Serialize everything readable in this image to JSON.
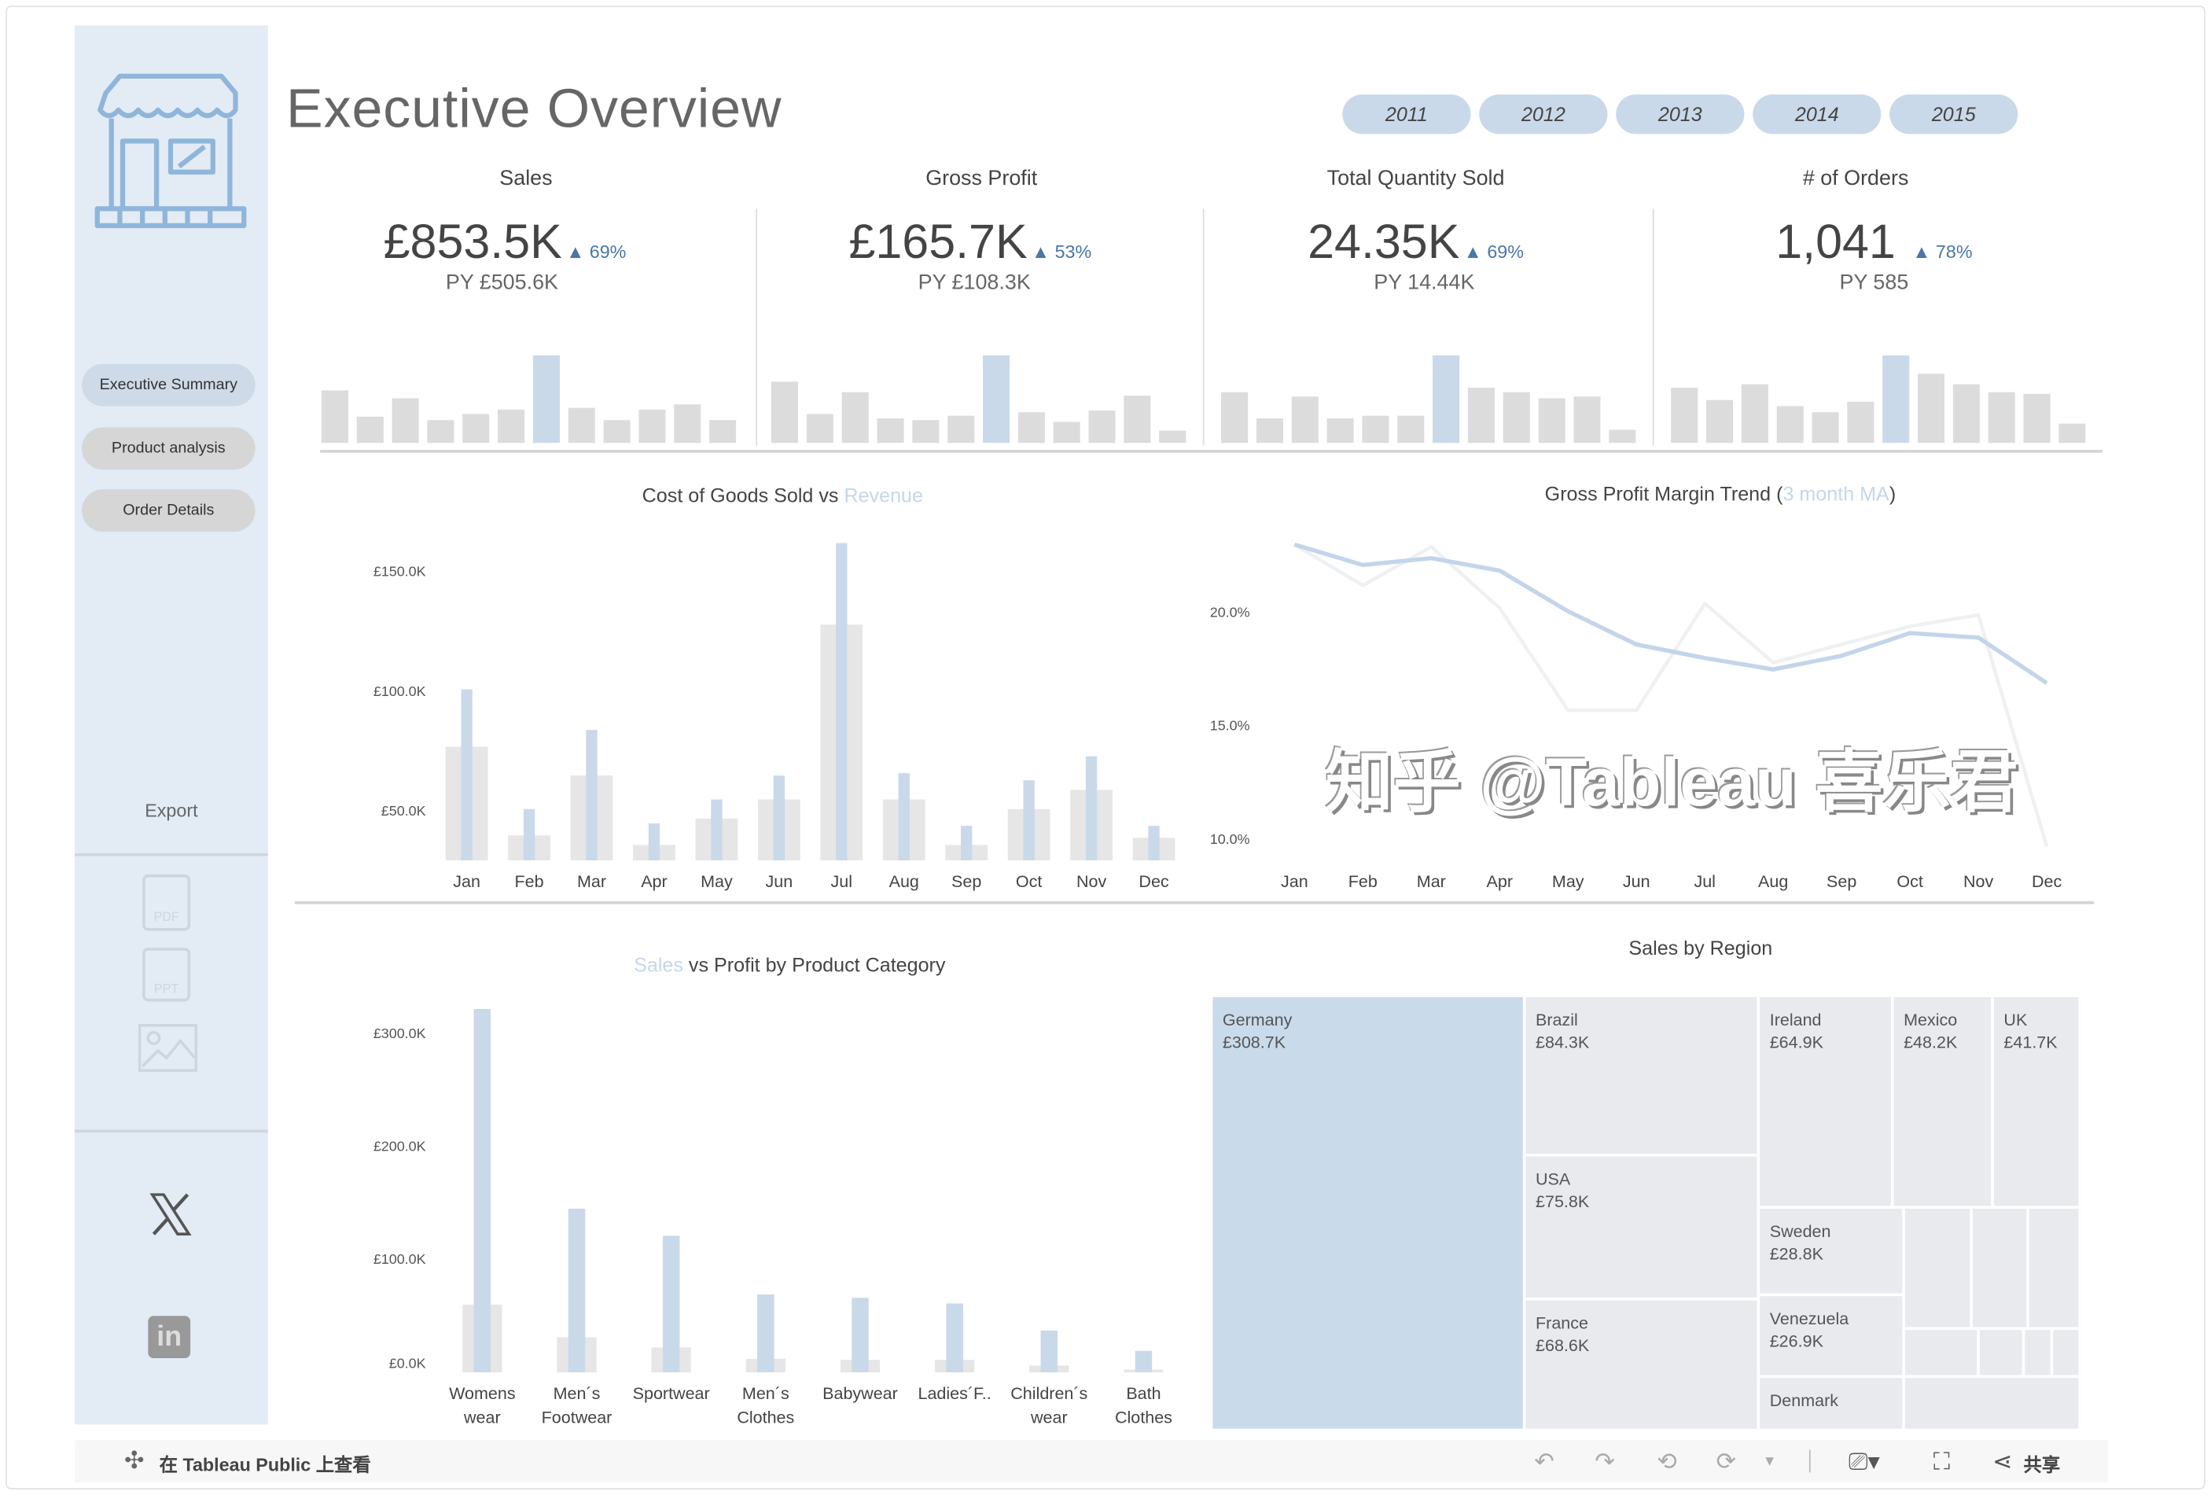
{
  "sidebar": {
    "nav": [
      "Executive Summary",
      "Product analysis",
      "Order Details"
    ],
    "export_label": "Export",
    "export_icons": [
      "pdf-icon",
      "ppt-icon",
      "image-icon"
    ],
    "pdf_label": "PDF",
    "ppt_label": "PPT",
    "social": [
      "x-icon",
      "linkedin-icon"
    ],
    "linkedin_label": "in"
  },
  "header": {
    "title": "Executive Overview",
    "years": [
      "2011",
      "2012",
      "2013",
      "2014",
      "2015"
    ]
  },
  "kpis": [
    {
      "label": "Sales",
      "value": "£853.5K",
      "delta": "▲ 69%",
      "py": "PY £505.6K",
      "spark": [
        0.6,
        0.3,
        0.51,
        0.26,
        0.33,
        0.38,
        1.0,
        0.4,
        0.26,
        0.38,
        0.44,
        0.26
      ]
    },
    {
      "label": "Gross Profit",
      "value": "£165.7K",
      "delta": "▲ 53%",
      "py": "PY £108.3K",
      "spark": [
        0.7,
        0.33,
        0.58,
        0.28,
        0.26,
        0.31,
        1.0,
        0.35,
        0.24,
        0.37,
        0.54,
        0.14
      ]
    },
    {
      "label": "Total Quantity Sold",
      "value": "24.35K",
      "delta": "▲ 69%",
      "py": "PY 14.44K",
      "spark": [
        0.58,
        0.28,
        0.53,
        0.28,
        0.31,
        0.31,
        1.0,
        0.63,
        0.58,
        0.51,
        0.53,
        0.15
      ]
    },
    {
      "label": "# of Orders",
      "value": "1,041",
      "delta": "▲ 78%",
      "py": "PY 585",
      "spark": [
        0.63,
        0.49,
        0.67,
        0.42,
        0.35,
        0.47,
        1.0,
        0.79,
        0.67,
        0.58,
        0.56,
        0.22
      ]
    }
  ],
  "colors": {
    "accent": "#c9d9ea",
    "grey": "#dcdcdc",
    "line_dark": "#c2d5ea",
    "line_light": "#eef0f2",
    "delta": "#4a76a8"
  },
  "chart_data": [
    {
      "type": "bar",
      "title": "Cost of Goods Sold vs",
      "title_highlight": "Revenue",
      "categories": [
        "Jan",
        "Feb",
        "Mar",
        "Apr",
        "May",
        "Jun",
        "Jul",
        "Aug",
        "Sep",
        "Oct",
        "Nov",
        "Dec"
      ],
      "series": [
        {
          "name": "Cost of Goods Sold",
          "values": [
            77,
            40,
            65,
            36,
            47,
            55,
            128,
            55,
            36,
            51,
            59,
            39
          ]
        },
        {
          "name": "Revenue",
          "values": [
            101,
            51,
            84,
            45,
            55,
            65,
            162,
            66,
            44,
            63,
            73,
            44
          ]
        }
      ],
      "yticks": [
        {
          "v": 50,
          "label": "£50.0K"
        },
        {
          "v": 100,
          "label": "£100.0K"
        },
        {
          "v": 150,
          "label": "£150.0K"
        }
      ],
      "ylim": [
        29.6,
        165
      ],
      "yunit": "£K"
    },
    {
      "type": "line",
      "title": "Gross Profit Margin Trend (",
      "title_highlight": "3 month MA",
      "title_end": ")",
      "categories": [
        "Jan",
        "Feb",
        "Mar",
        "Apr",
        "May",
        "Jun",
        "Jul",
        "Aug",
        "Sep",
        "Oct",
        "Nov",
        "Dec"
      ],
      "series": [
        {
          "name": "Gross Profit Margin",
          "values": [
            23.0,
            21.2,
            22.9,
            20.2,
            15.7,
            15.7,
            20.4,
            17.8,
            18.6,
            19.4,
            19.9,
            9.7
          ]
        },
        {
          "name": "3 month MA",
          "values": [
            23.0,
            22.1,
            22.4,
            21.85,
            20.06,
            18.6,
            18.0,
            17.5,
            18.1,
            19.1,
            18.9,
            16.9
          ]
        }
      ],
      "yticks": [
        {
          "v": 10,
          "label": "10.0%"
        },
        {
          "v": 15,
          "label": "15.0%"
        },
        {
          "v": 20,
          "label": "20.0%"
        }
      ],
      "ylim": [
        9.4,
        24
      ]
    },
    {
      "type": "bar",
      "title_highlight": "Sales",
      "title": "vs Profit by Product Category",
      "categories": [
        "Womens wear",
        "Men´s Footwear",
        "Sportwear",
        "Men´s Clothes",
        "Babywear",
        "Ladies´F..",
        "Children´s wear",
        "Bath Clothes"
      ],
      "series": [
        {
          "name": "Profit",
          "values": [
            60,
            31,
            22,
            12,
            11,
            11,
            6,
            2.5
          ]
        },
        {
          "name": "Sales",
          "values": [
            322,
            145,
            121,
            69,
            66,
            61,
            37,
            19
          ]
        }
      ],
      "yticks": [
        {
          "v": 0,
          "label": "£0.0K"
        },
        {
          "v": 100,
          "label": "£100.0K"
        },
        {
          "v": 200,
          "label": "£200.0K"
        },
        {
          "v": 300,
          "label": "£300.0K"
        }
      ],
      "ylim": [
        0,
        330
      ],
      "yunit": "£K"
    }
  ],
  "treemap": {
    "title": "Sales by Region",
    "cells": [
      {
        "name": "Germany",
        "value": "£308.7K"
      },
      {
        "name": "Brazil",
        "value": "£84.3K"
      },
      {
        "name": "USA",
        "value": "£75.8K"
      },
      {
        "name": "France",
        "value": "£68.6K"
      },
      {
        "name": "Ireland",
        "value": "£64.9K"
      },
      {
        "name": "Mexico",
        "value": "£48.2K"
      },
      {
        "name": "UK",
        "value": "£41.7K"
      },
      {
        "name": "Sweden",
        "value": "£28.8K"
      },
      {
        "name": "Venezuela",
        "value": "£26.9K"
      },
      {
        "name": "Denmark",
        "value": ""
      }
    ]
  },
  "footer": {
    "view_on_public": "在 Tableau Public 上查看",
    "share": "共享"
  },
  "watermark": "知乎 @Tableau 喜乐君"
}
